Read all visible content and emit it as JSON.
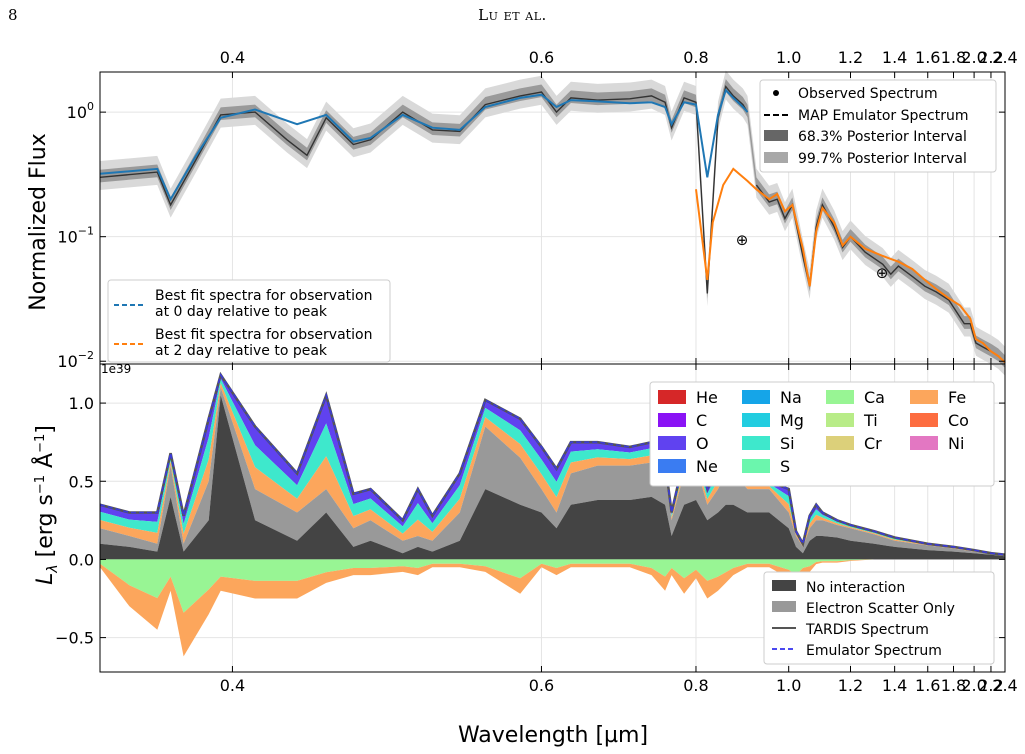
{
  "page": {
    "number": "8",
    "running_head": "Lu et al."
  },
  "chart_data": [
    {
      "type": "line",
      "panel": "top",
      "ylabel": "Normalized Flux",
      "yscale": "log",
      "ylim": [
        0.0095,
        2.1
      ],
      "xscale": "reciprocal",
      "xlim": [
        0.35,
        2.4
      ],
      "top_axis_ticks": [
        "0.4",
        "0.6",
        "0.8",
        "1.0",
        "1.2",
        "1.4",
        "1.6",
        "1.8",
        "2.0",
        "2.2",
        "2.4"
      ],
      "ytick_labels": [
        "10^0",
        "10^-1",
        "10^-2"
      ],
      "grid": true,
      "legend_upper": [
        "Observed Spectrum",
        "MAP Emulator Spectrum",
        "68.3% Posterior Interval",
        "99.7% Posterior Interval"
      ],
      "legend_lower": [
        "Best fit spectra for observation at 0 day relative to peak",
        "Best fit spectra for observation at 2 day relative to peak"
      ],
      "annotations": [
        "⊕",
        "⊕"
      ],
      "series": [
        {
          "name": "Best fit spectra for observation at 0 day relative to peak",
          "color": "#1f77b4",
          "x": [
            0.35,
            0.37,
            0.375,
            0.385,
            0.395,
            0.41,
            0.43,
            0.445,
            0.46,
            0.47,
            0.49,
            0.51,
            0.53,
            0.55,
            0.58,
            0.6,
            0.615,
            0.63,
            0.66,
            0.7,
            0.73,
            0.75,
            0.76,
            0.78,
            0.8,
            0.82,
            0.84,
            0.855,
            0.87,
            0.89,
            0.9
          ],
          "y": [
            0.32,
            0.35,
            0.2,
            0.45,
            0.9,
            1.05,
            0.8,
            0.95,
            0.58,
            0.62,
            0.95,
            0.75,
            0.72,
            1.1,
            1.3,
            1.38,
            1.1,
            1.25,
            1.22,
            1.18,
            1.2,
            1.1,
            0.8,
            1.2,
            1.15,
            0.3,
            0.95,
            1.5,
            1.3,
            1.1,
            1.0
          ]
        },
        {
          "name": "Best fit spectra for observation at 2 day relative to peak",
          "color": "#ff7f0e",
          "x": [
            0.8,
            0.82,
            0.83,
            0.85,
            0.87,
            0.9,
            0.92,
            0.95,
            0.97,
            0.99,
            1.01,
            1.04,
            1.06,
            1.08,
            1.1,
            1.14,
            1.17,
            1.2,
            1.26,
            1.34,
            1.42,
            1.5,
            1.58,
            1.66,
            1.76,
            1.86,
            1.96,
            2.02,
            2.1,
            2.2,
            2.3,
            2.4
          ],
          "y": [
            0.24,
            0.045,
            0.13,
            0.26,
            0.35,
            0.28,
            0.24,
            0.2,
            0.22,
            0.16,
            0.18,
            0.08,
            0.04,
            0.11,
            0.17,
            0.13,
            0.085,
            0.1,
            0.08,
            0.07,
            0.063,
            0.055,
            0.045,
            0.038,
            0.032,
            0.028,
            0.022,
            0.015,
            0.014,
            0.012,
            0.011,
            0.0098
          ]
        },
        {
          "name": "Observed Spectrum",
          "color": "#333333",
          "x": [
            0.35,
            0.37,
            0.375,
            0.385,
            0.395,
            0.41,
            0.425,
            0.435,
            0.445,
            0.46,
            0.47,
            0.49,
            0.51,
            0.53,
            0.55,
            0.58,
            0.6,
            0.615,
            0.63,
            0.66,
            0.7,
            0.73,
            0.75,
            0.76,
            0.78,
            0.8,
            0.82,
            0.84,
            0.855,
            0.87,
            0.89,
            0.9,
            0.92,
            0.95,
            0.97,
            0.99,
            1.01,
            1.04,
            1.06,
            1.08,
            1.1,
            1.14,
            1.17,
            1.2,
            1.26,
            1.34,
            1.38,
            1.42,
            1.5,
            1.58,
            1.66,
            1.76,
            1.9,
            1.96,
            2.02,
            2.1,
            2.2,
            2.3,
            2.4
          ],
          "y": [
            0.3,
            0.33,
            0.18,
            0.42,
            0.95,
            1.0,
            0.6,
            0.45,
            0.9,
            0.55,
            0.6,
            1.0,
            0.72,
            0.7,
            1.15,
            1.35,
            1.45,
            1.0,
            1.3,
            1.25,
            1.28,
            1.35,
            1.2,
            0.75,
            1.3,
            1.2,
            0.035,
            0.9,
            1.6,
            1.35,
            1.15,
            1.0,
            0.26,
            0.19,
            0.2,
            0.14,
            0.18,
            0.07,
            0.04,
            0.12,
            0.18,
            0.12,
            0.082,
            0.1,
            0.075,
            0.06,
            0.05,
            0.058,
            0.048,
            0.04,
            0.036,
            0.031,
            0.02,
            0.02,
            0.014,
            0.013,
            0.012,
            0.011,
            0.0097
          ]
        }
      ]
    },
    {
      "type": "area",
      "panel": "bottom",
      "xlabel": "Wavelength [µm]",
      "ylabel": "L_λ [erg s^-1 Å^-1]",
      "ylabel_main": "L",
      "ylabel_sub": "λ",
      "ylabel_units": "[erg s",
      "ylabel_units_mid": " Å",
      "ylabel_units_end": "]",
      "ylabel_sup": "−1",
      "yscale_factor": "1e39",
      "xscale": "reciprocal",
      "xlim": [
        0.35,
        2.4
      ],
      "ylim": [
        -0.72,
        1.25
      ],
      "xtick_labels": [
        "0.4",
        "0.6",
        "0.8",
        "1.0",
        "1.2",
        "1.4",
        "1.6",
        "1.8",
        "2.0",
        "2.2",
        "2.4"
      ],
      "ytick_labels": [
        "1.0",
        "0.5",
        "0.0",
        "−0.5"
      ],
      "grid": true,
      "element_legend": [
        {
          "name": "He",
          "color": "#d62728"
        },
        {
          "name": "C",
          "color": "#8a13f5"
        },
        {
          "name": "O",
          "color": "#6042f0"
        },
        {
          "name": "Ne",
          "color": "#3a7cf2"
        },
        {
          "name": "Na",
          "color": "#15a5e8"
        },
        {
          "name": "Mg",
          "color": "#22cde0"
        },
        {
          "name": "Si",
          "color": "#3ee8cc"
        },
        {
          "name": "S",
          "color": "#6bf6ad"
        },
        {
          "name": "Ca",
          "color": "#98f594"
        },
        {
          "name": "Ti",
          "color": "#b8ec88"
        },
        {
          "name": "Cr",
          "color": "#dcd07a"
        },
        {
          "name": "Fe",
          "color": "#fca65c"
        },
        {
          "name": "Co",
          "color": "#fd6d40"
        },
        {
          "name": "Ni",
          "color": "#e377c2"
        }
      ],
      "legend_lower": [
        "No interaction",
        "Electron Scatter Only",
        "TARDIS Spectrum",
        "Emulator Spectrum"
      ],
      "x": [
        0.35,
        0.36,
        0.37,
        0.375,
        0.38,
        0.39,
        0.395,
        0.41,
        0.43,
        0.445,
        0.46,
        0.47,
        0.49,
        0.5,
        0.51,
        0.53,
        0.55,
        0.58,
        0.6,
        0.615,
        0.63,
        0.66,
        0.7,
        0.73,
        0.75,
        0.76,
        0.78,
        0.8,
        0.82,
        0.84,
        0.855,
        0.87,
        0.9,
        0.95,
        1.0,
        1.02,
        1.04,
        1.06,
        1.08,
        1.1,
        1.15,
        1.2,
        1.3,
        1.4,
        1.6,
        1.8,
        2.0,
        2.2,
        2.4
      ],
      "tardis": [
        0.35,
        0.3,
        0.3,
        0.68,
        0.28,
        0.9,
        1.18,
        0.85,
        0.55,
        1.05,
        0.42,
        0.45,
        0.25,
        0.45,
        0.28,
        0.55,
        1.02,
        0.9,
        0.72,
        0.58,
        0.75,
        0.75,
        0.72,
        0.75,
        0.62,
        0.3,
        0.65,
        0.72,
        0.45,
        0.6,
        0.78,
        0.72,
        0.5,
        0.5,
        0.45,
        0.18,
        0.1,
        0.28,
        0.35,
        0.3,
        0.25,
        0.22,
        0.18,
        0.14,
        0.1,
        0.08,
        0.06,
        0.04,
        0.03
      ],
      "electron_scatter": [
        0.2,
        0.15,
        0.1,
        0.6,
        0.1,
        0.5,
        1.1,
        0.45,
        0.3,
        0.45,
        0.2,
        0.25,
        0.12,
        0.15,
        0.12,
        0.3,
        0.85,
        0.65,
        0.45,
        0.3,
        0.55,
        0.6,
        0.6,
        0.62,
        0.55,
        0.25,
        0.55,
        0.6,
        0.35,
        0.45,
        0.55,
        0.55,
        0.45,
        0.45,
        0.3,
        0.15,
        0.08,
        0.2,
        0.25,
        0.25,
        0.22,
        0.2,
        0.16,
        0.12,
        0.09,
        0.07,
        0.05,
        0.035,
        0.025
      ],
      "no_interaction": [
        0.1,
        0.08,
        0.05,
        0.4,
        0.05,
        0.25,
        1.05,
        0.25,
        0.12,
        0.3,
        0.08,
        0.12,
        0.04,
        0.08,
        0.05,
        0.12,
        0.45,
        0.35,
        0.3,
        0.2,
        0.35,
        0.38,
        0.38,
        0.4,
        0.35,
        0.15,
        0.35,
        0.38,
        0.25,
        0.3,
        0.35,
        0.35,
        0.3,
        0.3,
        0.2,
        0.08,
        0.04,
        0.12,
        0.15,
        0.15,
        0.14,
        0.12,
        0.1,
        0.08,
        0.06,
        0.05,
        0.04,
        0.03,
        0.02
      ],
      "absorption_floor": [
        -0.05,
        -0.3,
        -0.45,
        -0.2,
        -0.62,
        -0.35,
        -0.2,
        -0.25,
        -0.25,
        -0.15,
        -0.1,
        -0.1,
        -0.08,
        -0.1,
        -0.05,
        -0.05,
        -0.08,
        -0.22,
        -0.05,
        -0.1,
        -0.05,
        -0.05,
        -0.05,
        -0.1,
        -0.2,
        -0.1,
        -0.22,
        -0.12,
        -0.25,
        -0.2,
        -0.15,
        -0.1,
        -0.05,
        -0.05,
        -0.12,
        -0.18,
        -0.1,
        -0.08,
        -0.03,
        -0.02,
        -0.02,
        -0.01,
        0,
        0,
        0,
        0,
        0,
        0,
        0
      ]
    }
  ]
}
